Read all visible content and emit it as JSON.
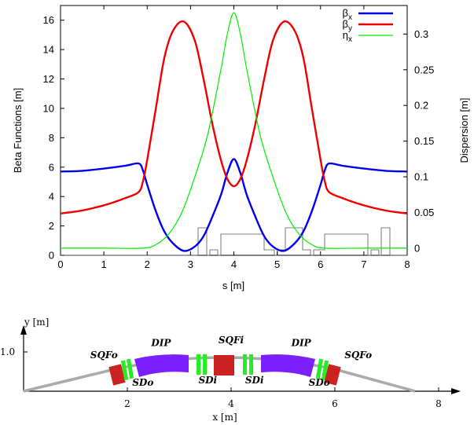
{
  "chart_data": [
    {
      "type": "line",
      "xlabel": "s [m]",
      "ylabel": "Beta Functions [m]",
      "y2label": "Dispersion [m]",
      "xlim": [
        0,
        8
      ],
      "ylim": [
        0,
        17
      ],
      "y2lim": [
        -0.01,
        0.34
      ],
      "xticks": [
        "0",
        "1",
        "2",
        "3",
        "4",
        "5",
        "6",
        "7",
        "8"
      ],
      "yticks": [
        "0",
        "2",
        "4",
        "6",
        "8",
        "10",
        "12",
        "14",
        "16"
      ],
      "y2ticks": [
        "0",
        "0.05",
        "0.1",
        "0.15",
        "0.2",
        "0.25",
        "0.3"
      ],
      "legend_position": "top-right",
      "series": [
        {
          "name": "βx",
          "legend_base": "β",
          "legend_sub": "x",
          "color": "#0000ee",
          "axis": "left",
          "x": [
            0,
            0.5,
            1.0,
            1.5,
            1.8,
            1.9,
            2.0,
            2.2,
            2.4,
            2.6,
            2.85,
            3.1,
            3.3,
            3.5,
            3.7,
            3.85,
            4.0,
            4.15,
            4.3,
            4.5,
            4.7,
            4.9,
            5.15,
            5.4,
            5.6,
            5.8,
            6.0,
            6.1,
            6.2,
            6.5,
            7.0,
            7.5,
            8.0
          ],
          "y": [
            5.7,
            5.75,
            5.9,
            6.1,
            6.25,
            5.8,
            4.8,
            3.0,
            1.6,
            0.8,
            0.3,
            0.6,
            1.3,
            2.6,
            4.1,
            5.6,
            6.55,
            5.6,
            4.1,
            2.6,
            1.3,
            0.6,
            0.3,
            0.8,
            1.6,
            3.0,
            4.8,
            5.8,
            6.25,
            6.1,
            5.9,
            5.75,
            5.7
          ]
        },
        {
          "name": "βy",
          "legend_base": "β",
          "legend_sub": "y",
          "color": "#ee0000",
          "axis": "left",
          "x": [
            0,
            0.5,
            1.0,
            1.5,
            1.8,
            1.9,
            2.0,
            2.2,
            2.4,
            2.6,
            2.85,
            3.1,
            3.3,
            3.5,
            3.7,
            3.85,
            4.0,
            4.15,
            4.3,
            4.5,
            4.7,
            4.9,
            5.15,
            5.4,
            5.6,
            5.8,
            6.0,
            6.1,
            6.2,
            6.5,
            7.0,
            7.5,
            8.0
          ],
          "y": [
            2.85,
            3.05,
            3.4,
            3.9,
            4.3,
            5.0,
            6.5,
            10.0,
            13.5,
            15.3,
            15.9,
            14.6,
            12.0,
            9.0,
            6.5,
            5.2,
            4.7,
            5.2,
            6.5,
            9.0,
            12.0,
            14.6,
            15.9,
            15.3,
            13.5,
            10.0,
            6.5,
            5.0,
            4.3,
            3.9,
            3.4,
            3.05,
            2.85
          ]
        },
        {
          "name": "ηx",
          "legend_base": "η",
          "legend_sub": "x",
          "color": "#00ee00",
          "axis": "right",
          "x": [
            0,
            1.0,
            1.9,
            2.2,
            2.5,
            2.8,
            3.1,
            3.4,
            3.7,
            3.85,
            4.0,
            4.15,
            4.3,
            4.6,
            4.9,
            5.2,
            5.5,
            5.8,
            6.1,
            7.0,
            8.0
          ],
          "y": [
            0.0,
            0.0,
            0.0,
            0.005,
            0.02,
            0.05,
            0.1,
            0.16,
            0.25,
            0.3,
            0.33,
            0.3,
            0.25,
            0.16,
            0.1,
            0.05,
            0.02,
            0.005,
            0.0,
            0.0,
            0.0
          ]
        }
      ]
    },
    {
      "type": "diagram",
      "xlabel": "x [m]",
      "ylabel": "y [m]",
      "xticks": [
        "2",
        "4",
        "6",
        "8"
      ],
      "yticks": [
        "1.0"
      ],
      "xlim": [
        -0.2,
        8.7
      ],
      "ylim": [
        0,
        1.35
      ],
      "element_labels": [
        {
          "text": "SQFo",
          "x": 1.55,
          "y": 0.92
        },
        {
          "text": "SDo",
          "x": 2.3,
          "y": 0.22
        },
        {
          "text": "DIP",
          "x": 2.65,
          "y": 1.23
        },
        {
          "text": "SQFi",
          "x": 4.0,
          "y": 1.3
        },
        {
          "text": "SDi",
          "x": 3.55,
          "y": 0.28
        },
        {
          "text": "SDi",
          "x": 4.45,
          "y": 0.28
        },
        {
          "text": "DIP",
          "x": 5.35,
          "y": 1.23
        },
        {
          "text": "SQFo",
          "x": 6.45,
          "y": 0.92
        },
        {
          "text": "SDo",
          "x": 5.7,
          "y": 0.22
        }
      ]
    }
  ]
}
